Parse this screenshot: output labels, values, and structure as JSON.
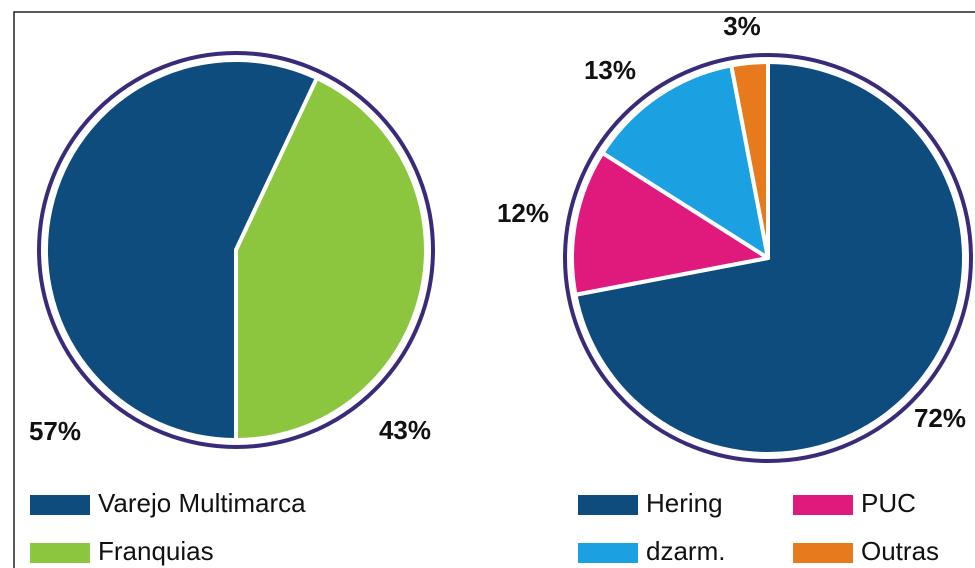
{
  "chart_data": [
    {
      "type": "pie",
      "categories": [
        "Varejo Multimarca",
        "Franquias"
      ],
      "values": [
        57,
        43
      ],
      "value_labels": [
        "57%",
        "43%"
      ],
      "colors": [
        "#0e4c7e",
        "#8cc63f"
      ]
    },
    {
      "type": "pie",
      "categories": [
        "Hering",
        "PUC",
        "dzarm.",
        "Outras"
      ],
      "values": [
        72,
        12,
        13,
        3
      ],
      "value_labels": [
        "72%",
        "12%",
        "13%",
        "3%"
      ],
      "colors": [
        "#0e4c7e",
        "#e0197d",
        "#1ba1e2",
        "#e87a1e"
      ]
    }
  ]
}
